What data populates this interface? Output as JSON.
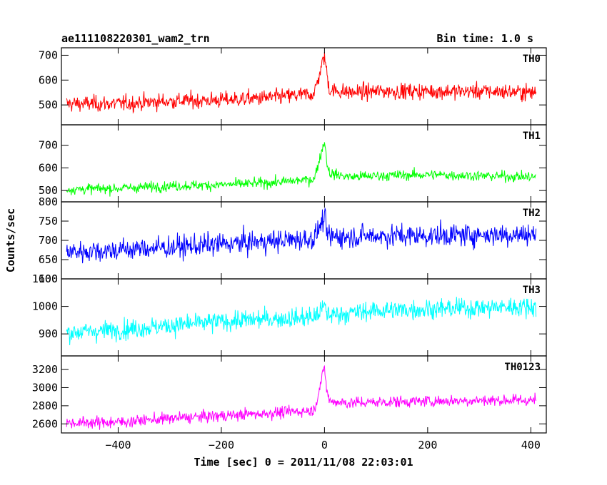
{
  "header": {
    "title": "ae111108220301_wam2_trn",
    "bin_time": "Bin time: 1.0 s"
  },
  "chart_data": {
    "type": "line",
    "xlabel": "Time [sec] 0 = 2011/11/08 22:03:01",
    "ylabel": "Counts/sec",
    "xlim": [
      -510,
      430
    ],
    "x_ticks": [
      -400,
      -200,
      0,
      200,
      400
    ],
    "x_tick_labels": [
      "−400",
      "−200",
      "0",
      "200",
      "400"
    ],
    "grid": false,
    "panels": [
      {
        "name": "TH0",
        "color": "#ff0000",
        "ylim": [
          420,
          730
        ],
        "yticks": [
          500,
          600,
          700
        ],
        "series": {
          "x": [
            -500,
            -400,
            -300,
            -200,
            -100,
            -20,
            0,
            5,
            10,
            50,
            100,
            200,
            300,
            410
          ],
          "y": [
            505,
            505,
            515,
            520,
            530,
            545,
            700,
            620,
            560,
            550,
            555,
            555,
            555,
            550
          ]
        },
        "noise_amplitude": 50
      },
      {
        "name": "TH1",
        "color": "#00ff00",
        "ylim": [
          450,
          790
        ],
        "yticks": [
          500,
          600,
          700
        ],
        "series": {
          "x": [
            -500,
            -400,
            -300,
            -200,
            -100,
            -20,
            0,
            5,
            10,
            50,
            100,
            200,
            300,
            410
          ],
          "y": [
            505,
            510,
            520,
            525,
            535,
            550,
            720,
            620,
            575,
            560,
            565,
            570,
            565,
            560
          ]
        },
        "noise_amplitude": 35
      },
      {
        "name": "TH2",
        "color": "#0000ff",
        "ylim": [
          600,
          800
        ],
        "yticks": [
          600,
          650,
          700,
          750,
          800
        ],
        "series": {
          "x": [
            -500,
            -400,
            -300,
            -200,
            -100,
            -20,
            0,
            5,
            10,
            50,
            100,
            200,
            300,
            410
          ],
          "y": [
            670,
            675,
            682,
            690,
            698,
            705,
            760,
            715,
            710,
            710,
            712,
            712,
            715,
            715
          ]
        },
        "noise_amplitude": 45
      },
      {
        "name": "TH3",
        "color": "#00ffff",
        "ylim": [
          820,
          1100
        ],
        "yticks": [
          900,
          1000,
          1100
        ],
        "series": {
          "x": [
            -500,
            -400,
            -300,
            -200,
            -100,
            -20,
            0,
            5,
            10,
            50,
            100,
            200,
            300,
            410
          ],
          "y": [
            905,
            915,
            930,
            945,
            955,
            960,
            1000,
            975,
            970,
            975,
            985,
            990,
            995,
            1000
          ]
        },
        "noise_amplitude": 55
      },
      {
        "name": "TH0123",
        "color": "#ff00ff",
        "ylim": [
          2500,
          3350
        ],
        "yticks": [
          2600,
          2800,
          3000,
          3200
        ],
        "series": {
          "x": [
            -500,
            -400,
            -300,
            -200,
            -100,
            -20,
            0,
            5,
            10,
            50,
            100,
            200,
            300,
            410
          ],
          "y": [
            2610,
            2620,
            2660,
            2690,
            2720,
            2750,
            3220,
            2950,
            2850,
            2830,
            2840,
            2850,
            2860,
            2860
          ]
        },
        "noise_amplitude": 100
      }
    ]
  }
}
